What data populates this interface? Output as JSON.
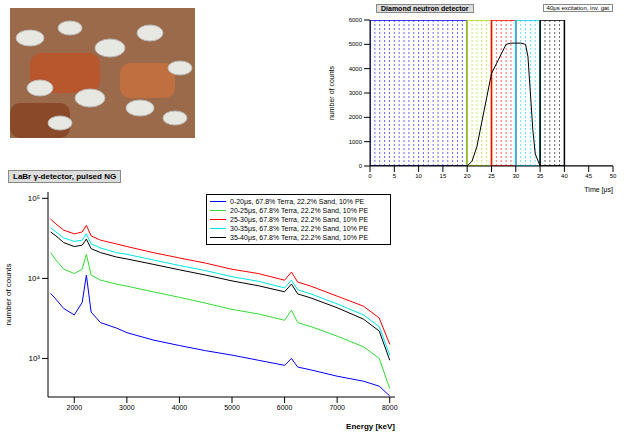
{
  "chart_data": [
    {
      "type": "line",
      "title": "Diamond neutron detector",
      "annotation": "40μs excitation, inv. gat",
      "x_label": "Time [μs]",
      "y_label": "number of counts",
      "xlim": [
        0,
        50
      ],
      "xticks": [
        0,
        5,
        10,
        15,
        20,
        25,
        30,
        35,
        40,
        45,
        50
      ],
      "ylim": [
        0,
        6000
      ],
      "yticks": [
        0,
        1000,
        2000,
        3000,
        4000,
        5000,
        6000
      ],
      "x": [
        0,
        5,
        10,
        15,
        20,
        21,
        22,
        23,
        24,
        25,
        26,
        27,
        28,
        29,
        30,
        31,
        32,
        32.5,
        33,
        33.5,
        34,
        35,
        40,
        45,
        50
      ],
      "series": [
        {
          "name": null,
          "color": "#000000",
          "values": [
            0,
            0,
            0,
            0,
            0,
            200,
            800,
            1800,
            2800,
            3800,
            4200,
            4600,
            5000,
            5050,
            5050,
            5050,
            5000,
            4500,
            3000,
            1500,
            500,
            0,
            0,
            0,
            0
          ]
        }
      ],
      "gates": [
        {
          "range": [
            0,
            20
          ],
          "color": "#0000ff",
          "lines": [
            1,
            2,
            3,
            4,
            5,
            6,
            7,
            8,
            9,
            10,
            11,
            12,
            13,
            14,
            15,
            16,
            17,
            18,
            19
          ]
        },
        {
          "range": [
            20,
            25
          ],
          "color": "#aadd00",
          "lines": [
            21,
            22,
            23,
            24
          ]
        },
        {
          "range": [
            25,
            30
          ],
          "color": "#ff0000",
          "lines": [
            26,
            27,
            28,
            29
          ]
        },
        {
          "range": [
            30,
            35
          ],
          "color": "#00ccff",
          "lines": [
            31,
            32,
            33,
            34
          ]
        },
        {
          "range": [
            35,
            40
          ],
          "color": "#000000",
          "lines": [
            36,
            37,
            38,
            39
          ]
        }
      ]
    },
    {
      "type": "line",
      "title": "LaBr γ-detector, pulsed NG",
      "x_label": "Energy [keV]",
      "y_label": "number of counts",
      "log": "y",
      "legend": "upper right",
      "xlim": [
        1500,
        8100
      ],
      "xticks": [
        2000,
        3000,
        4000,
        5000,
        6000,
        7000,
        8000
      ],
      "ylim": [
        330,
        120000
      ],
      "yticks": [
        {
          "value": 1000,
          "label": "10³"
        },
        {
          "value": 10000,
          "label": "10⁴"
        },
        {
          "value": 100000,
          "label": "10⁵"
        }
      ],
      "x": [
        1550,
        1650,
        1800,
        2000,
        2150,
        2230,
        2320,
        2500,
        2800,
        3000,
        3500,
        4000,
        4500,
        5000,
        5500,
        6000,
        6130,
        6250,
        6500,
        7000,
        7500,
        7800,
        8000
      ],
      "series": [
        {
          "name": "0-20μs, 67.8% Terra, 22.2% Sand, 10% PE",
          "color": "#0000ff",
          "values": [
            6500,
            5500,
            4200,
            3500,
            5000,
            11000,
            3800,
            2800,
            2400,
            2100,
            1700,
            1450,
            1250,
            1100,
            950,
            820,
            1000,
            780,
            720,
            600,
            520,
            450,
            340
          ]
        },
        {
          "name": "20-25μs, 67.8% Terra, 22.2% Sand, 10% PE",
          "color": "#33dd33",
          "values": [
            21000,
            17000,
            13000,
            11500,
            13000,
            20000,
            11000,
            9500,
            8500,
            8000,
            6800,
            5800,
            4900,
            4100,
            3600,
            3000,
            4000,
            2800,
            2500,
            1900,
            1400,
            1000,
            420
          ]
        },
        {
          "name": "25-30μs, 67.8% Terra, 22.2% Sand, 10% PE",
          "color": "#ff0000",
          "values": [
            55000,
            48000,
            40000,
            36000,
            38000,
            46000,
            34000,
            30000,
            27000,
            25000,
            21000,
            18000,
            15500,
            13000,
            11500,
            9500,
            12000,
            9000,
            8000,
            6000,
            4500,
            3200,
            1500
          ]
        },
        {
          "name": "30-35μs, 67.8% Terra, 22.2% Sand, 10% PE",
          "color": "#00e5ee",
          "values": [
            43000,
            38000,
            32000,
            29000,
            30000,
            36000,
            27000,
            24000,
            21000,
            20000,
            17000,
            14500,
            12500,
            10500,
            9200,
            7600,
            9500,
            7200,
            6400,
            4800,
            3500,
            2500,
            1100
          ]
        },
        {
          "name": "35-40μs, 67.8% Terra, 22.2% Sand, 10% PE",
          "color": "#000000",
          "values": [
            38000,
            34000,
            28000,
            25000,
            26000,
            31000,
            23500,
            21000,
            18500,
            17500,
            15000,
            12800,
            11000,
            9300,
            8100,
            6800,
            8500,
            6400,
            5700,
            4300,
            3100,
            2200,
            950
          ]
        }
      ]
    }
  ]
}
